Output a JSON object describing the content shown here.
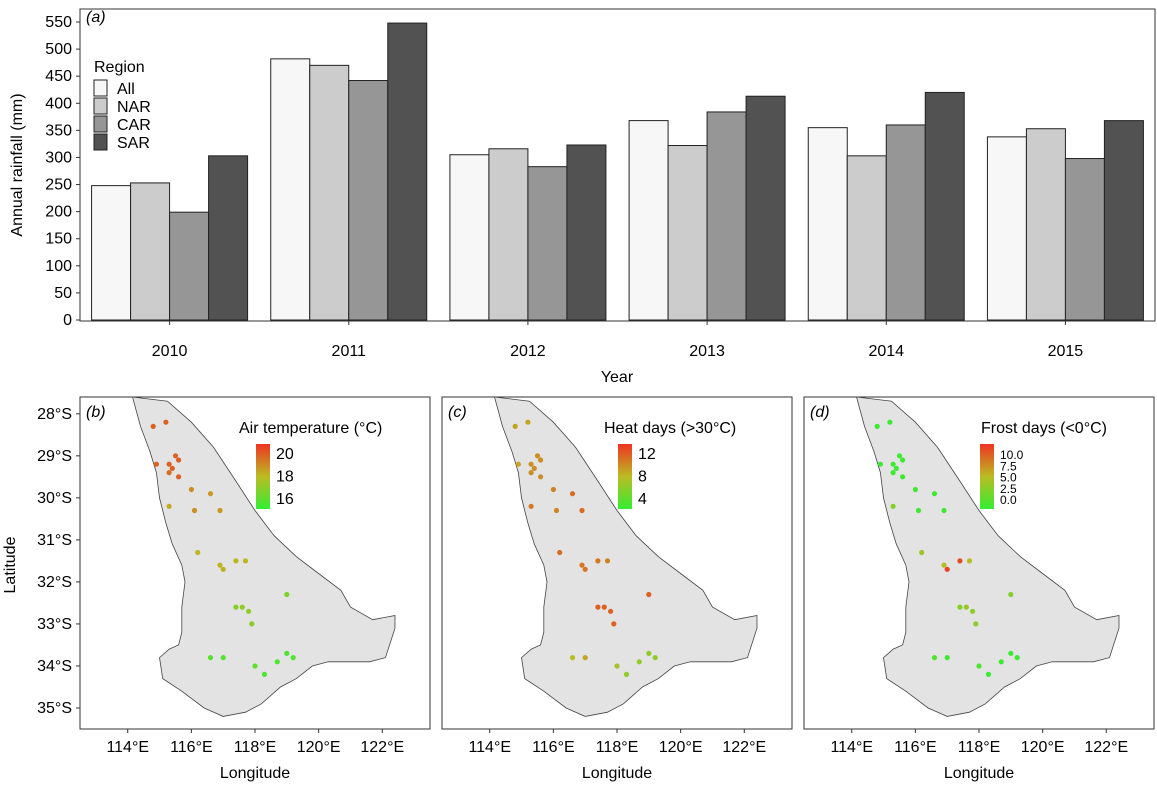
{
  "chart_data": [
    {
      "type": "bar",
      "panel_label": "(a)",
      "xlabel": "Year",
      "ylabel": "Annual rainfall (mm)",
      "ylim": [
        0,
        550
      ],
      "yticks": [
        0,
        50,
        100,
        150,
        200,
        250,
        300,
        350,
        400,
        450,
        500,
        550
      ],
      "categories": [
        "2010",
        "2011",
        "2012",
        "2013",
        "2014",
        "2015"
      ],
      "legend": {
        "title": "Region",
        "position": "top-left"
      },
      "series": [
        {
          "name": "All",
          "color": "#f7f7f7",
          "values": [
            248,
            482,
            305,
            368,
            355,
            338
          ]
        },
        {
          "name": "NAR",
          "color": "#cccccc",
          "values": [
            253,
            470,
            316,
            322,
            303,
            353
          ]
        },
        {
          "name": "CAR",
          "color": "#969696",
          "values": [
            199,
            442,
            283,
            384,
            360,
            298
          ]
        },
        {
          "name": "SAR",
          "color": "#525252",
          "values": [
            303,
            548,
            323,
            413,
            420,
            368
          ]
        }
      ],
      "grid": false
    },
    {
      "type": "scatter",
      "panel_label": "(b)",
      "colorbar_title": "Air temperature (°C)",
      "colorbar_ticks": [
        "20",
        "18",
        "16"
      ],
      "colorbar_range": [
        15.5,
        21.5
      ],
      "xlabel": "Longitude",
      "ylabel": "Latitude",
      "xticks": [
        "114°E",
        "116°E",
        "118°E",
        "120°E",
        "122°E"
      ],
      "yticks": [
        "28°S",
        "29°S",
        "30°S",
        "31°S",
        "32°S",
        "33°S",
        "34°S",
        "35°S"
      ],
      "xlim": [
        112.5,
        123.5
      ],
      "ylim": [
        -35.5,
        -27.6
      ],
      "station_values": [
        20.5,
        20.5,
        20.5,
        20.5,
        20.5,
        20.5,
        20.5,
        20.5,
        20.2,
        19.5,
        19.3,
        19.5,
        19.3,
        18.9,
        18.6,
        18.7,
        18.8,
        18.6,
        18.6,
        17.6,
        17.5,
        17.3,
        17.4,
        17.1,
        16.3,
        16.1,
        16.5,
        16.0,
        16.0,
        16.2,
        16.1
      ]
    },
    {
      "type": "scatter",
      "panel_label": "(c)",
      "colorbar_title": "Heat days (>30°C)",
      "colorbar_ticks": [
        "12",
        "8",
        "4"
      ],
      "colorbar_range": [
        2,
        14
      ],
      "xlabel": "Longitude",
      "xticks": [
        "114°E",
        "116°E",
        "118°E",
        "120°E",
        "122°E"
      ],
      "station_values": [
        9,
        9,
        9,
        10,
        10,
        10,
        10,
        10,
        10,
        10.5,
        11.5,
        10.5,
        11.5,
        11,
        11.5,
        11,
        11,
        11,
        10.5,
        12,
        12,
        12,
        12,
        12,
        8,
        9,
        7,
        6,
        6,
        6,
        6
      ]
    },
    {
      "type": "scatter",
      "panel_label": "(d)",
      "colorbar_title": "Frost days (<0°C)",
      "colorbar_ticks": [
        "10.0",
        "7.5",
        "5.0",
        "2.5",
        "0.0"
      ],
      "colorbar_range": [
        0,
        10.5
      ],
      "xlabel": "Longitude",
      "xticks": [
        "114°E",
        "116°E",
        "118°E",
        "120°E",
        "122°E"
      ],
      "station_values": [
        0.3,
        0.3,
        0.3,
        0.3,
        0.3,
        0.3,
        0.3,
        0.3,
        0.3,
        0.5,
        0.5,
        0.5,
        0.5,
        3,
        4,
        5,
        10,
        9.5,
        5,
        4,
        3.5,
        3,
        3.5,
        3,
        1,
        0.5,
        1,
        0.3,
        0.3,
        0.3,
        0.3
      ]
    }
  ],
  "map": {
    "stations": [
      [
        114.8,
        -28.3
      ],
      [
        115.2,
        -28.2
      ],
      [
        114.9,
        -29.2
      ],
      [
        115.3,
        -29.2
      ],
      [
        115.6,
        -29.1
      ],
      [
        115.4,
        -29.3
      ],
      [
        115.6,
        -29.5
      ],
      [
        115.5,
        -29.0
      ],
      [
        115.3,
        -29.4
      ],
      [
        116.0,
        -29.8
      ],
      [
        116.6,
        -29.9
      ],
      [
        116.1,
        -30.3
      ],
      [
        116.9,
        -30.3
      ],
      [
        115.3,
        -30.2
      ],
      [
        116.2,
        -31.3
      ],
      [
        116.9,
        -31.6
      ],
      [
        117.0,
        -31.7
      ],
      [
        117.4,
        -31.5
      ],
      [
        117.7,
        -31.5
      ],
      [
        117.6,
        -32.6
      ],
      [
        117.8,
        -32.7
      ],
      [
        117.4,
        -32.6
      ],
      [
        117.9,
        -33.0
      ],
      [
        119.0,
        -32.3
      ],
      [
        116.6,
        -33.8
      ],
      [
        117.0,
        -33.8
      ],
      [
        118.0,
        -34.0
      ],
      [
        118.3,
        -34.2
      ],
      [
        118.7,
        -33.9
      ],
      [
        119.0,
        -33.7
      ],
      [
        119.2,
        -33.8
      ]
    ]
  }
}
